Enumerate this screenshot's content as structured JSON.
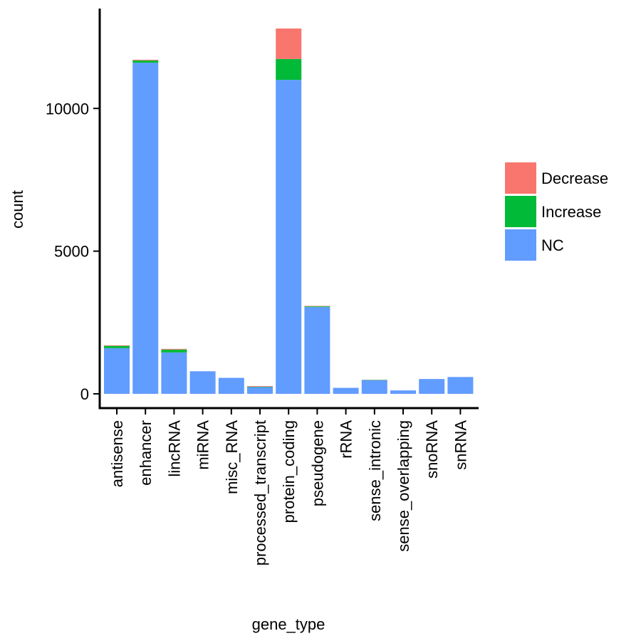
{
  "chart_data": {
    "type": "bar",
    "stacked": true,
    "xlabel": "gene_type",
    "ylabel": "count",
    "ylim": [
      -500,
      13500
    ],
    "yticks": [
      0,
      5000,
      10000
    ],
    "ytick_labels": [
      "0",
      "5000",
      "10000"
    ],
    "grid": false,
    "legend_position": "right",
    "categories": [
      "antisense",
      "enhancer",
      "lincRNA",
      "miRNA",
      "misc_RNA",
      "processed_transcript",
      "protein_coding",
      "pseudogene",
      "rRNA",
      "sense_intronic",
      "sense_overlapping",
      "snoRNA",
      "snRNA"
    ],
    "series": [
      {
        "name": "Decrease",
        "color": "#F8766D",
        "values": [
          20,
          25,
          25,
          0,
          0,
          20,
          1070,
          15,
          0,
          5,
          0,
          0,
          0
        ]
      },
      {
        "name": "Increase",
        "color": "#00BA38",
        "values": [
          80,
          80,
          100,
          0,
          0,
          15,
          730,
          25,
          0,
          10,
          0,
          0,
          0
        ]
      },
      {
        "name": "NC",
        "color": "#619CFF",
        "values": [
          1600,
          11600,
          1450,
          790,
          560,
          235,
          11000,
          3040,
          210,
          480,
          120,
          520,
          590
        ]
      }
    ]
  }
}
